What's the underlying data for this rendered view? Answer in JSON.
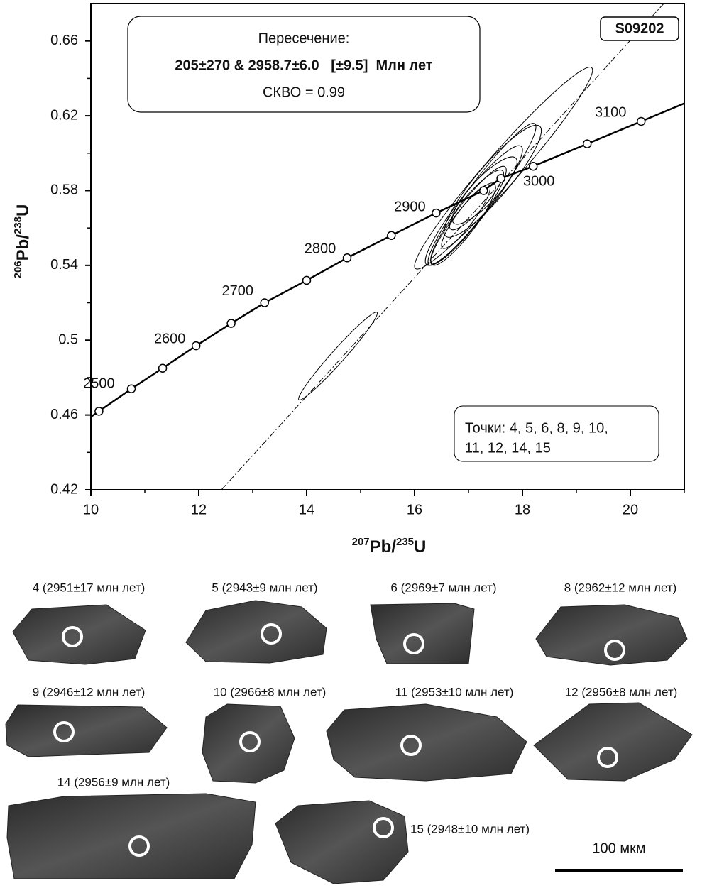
{
  "chart_data": {
    "type": "concordia",
    "xlabel": [
      "207",
      "Pb/",
      "235",
      "U"
    ],
    "ylabel": [
      "206",
      "Pb/",
      "238",
      "U"
    ],
    "xlim": [
      10,
      21
    ],
    "ylim": [
      0.42,
      0.68
    ],
    "xticks": [
      10,
      12,
      14,
      16,
      18,
      20
    ],
    "yticks": [
      0.42,
      0.46,
      0.5,
      0.54,
      0.58,
      0.62,
      0.66
    ],
    "xminor": [
      11,
      13,
      15,
      17,
      19,
      21
    ],
    "yminor": [
      0.44,
      0.48,
      0.52,
      0.56,
      0.6,
      0.64
    ],
    "sample": "S09202",
    "intercept_box": [
      "Пересечение:",
      "205±270 & 2958.7±6.0   [±9.5]  Млн лет",
      "СКВО = 0.99"
    ],
    "points_box": [
      "Точки: 4, 5, 6, 8, 9, 10,",
      "11, 12, 14, 15"
    ],
    "concordia": {
      "x": [
        10.15,
        10.75,
        11.33,
        11.95,
        12.6,
        13.22,
        14.0,
        14.75,
        15.57,
        16.4,
        17.28,
        17.6,
        18.2,
        19.2,
        20.2
      ],
      "y": [
        0.462,
        0.474,
        0.485,
        0.497,
        0.509,
        0.52,
        0.532,
        0.544,
        0.556,
        0.568,
        0.58,
        0.5865,
        0.593,
        0.605,
        0.617
      ],
      "labels": [
        "2500",
        null,
        null,
        "2600",
        null,
        "2700",
        null,
        "2800",
        null,
        "2900",
        null,
        null,
        "3000",
        null,
        "3100"
      ]
    },
    "discordia": {
      "x": [
        12.42,
        20.62
      ],
      "y": [
        0.42,
        0.68
      ]
    },
    "ellipses": [
      {
        "x": 17.65,
        "y": 0.592,
        "sx": 1.65,
        "sy": 0.054,
        "rho": 0.97
      },
      {
        "x": 14.58,
        "y": 0.4915,
        "sx": 0.73,
        "sy": 0.0235,
        "rho": 0.975
      },
      {
        "x": 17.25,
        "y": 0.578,
        "sx": 1.0,
        "sy": 0.038,
        "rho": 0.95
      },
      {
        "x": 17.1,
        "y": 0.572,
        "sx": 0.9,
        "sy": 0.032,
        "rho": 0.93
      },
      {
        "x": 17.0,
        "y": 0.567,
        "sx": 0.7,
        "sy": 0.026,
        "rho": 0.92
      },
      {
        "x": 16.9,
        "y": 0.562,
        "sx": 0.6,
        "sy": 0.022,
        "rho": 0.9
      },
      {
        "x": 17.3,
        "y": 0.58,
        "sx": 0.6,
        "sy": 0.018,
        "rho": 0.85
      },
      {
        "x": 17.45,
        "y": 0.585,
        "sx": 0.9,
        "sy": 0.03,
        "rho": 0.9
      },
      {
        "x": 16.95,
        "y": 0.566,
        "sx": 0.45,
        "sy": 0.017,
        "rho": 0.9
      },
      {
        "x": 17.15,
        "y": 0.575,
        "sx": 0.5,
        "sy": 0.016,
        "rho": 0.88
      }
    ]
  },
  "grains": [
    "4 (2951±17 млн лет)",
    "5 (2943±9 млн лет)",
    "6 (2969±7 млн лет)",
    "8 (2962±12 млн лет)",
    "9 (2946±12 млн лет)",
    "10 (2966±8 млн лет)",
    "11 (2953±10 млн лет)",
    "12 (2956±8 млн лет)",
    "14 (2956±9 млн лет)",
    "15 (2948±10 млн лет)"
  ],
  "scale_bar": "100 мкм"
}
